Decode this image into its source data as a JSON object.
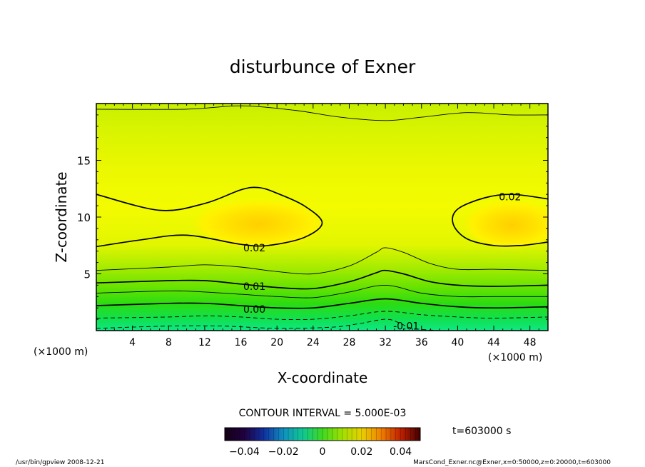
{
  "chart_data": {
    "type": "contour",
    "title": "disturbunce of Exner",
    "xlabel": "X-coordinate",
    "ylabel": "Z-coordinate",
    "x_unit": "(×1000 m)",
    "y_unit": "(×1000 m)",
    "xlim": [
      0,
      50
    ],
    "ylim": [
      0,
      20
    ],
    "x_ticks": [
      4,
      8,
      12,
      16,
      20,
      24,
      28,
      32,
      36,
      40,
      44,
      48
    ],
    "y_ticks": [
      5,
      10,
      15
    ],
    "contour_interval_text": "CONTOUR INTERVAL = 5.000E-03",
    "time_text": "t=603000 s",
    "colorbar_ticks": [
      "−0.04",
      "−0.02",
      "0",
      "0.02",
      "0.04"
    ],
    "colorbar_range": [
      -0.05,
      0.05
    ],
    "contour_labels": [
      {
        "text": "0.02",
        "x": 17.5,
        "y": 7.3
      },
      {
        "text": "0.02",
        "x": 45.8,
        "y": 11.8
      },
      {
        "text": "0.01",
        "x": 17.5,
        "y": 3.9
      },
      {
        "text": "0.00",
        "x": 17.5,
        "y": 1.9
      },
      {
        "text": "-0.01",
        "x": 34.3,
        "y": 0.4
      }
    ],
    "contour_lines": [
      {
        "level": 0.025,
        "style": "thick",
        "points": [
          [
            0,
            12.0
          ],
          [
            7,
            10.6
          ],
          [
            12,
            11.2
          ],
          [
            16,
            12.4
          ],
          [
            18,
            12.6
          ],
          [
            20,
            12.1
          ],
          [
            23,
            11.0
          ],
          [
            25,
            9.5
          ],
          [
            23,
            8.2
          ],
          [
            19,
            7.5
          ],
          [
            16,
            7.6
          ],
          [
            10,
            8.4
          ],
          [
            5,
            8.0
          ],
          [
            0,
            7.4
          ]
        ]
      },
      {
        "level": 0.025,
        "style": "thick",
        "points": [
          [
            50,
            11.6
          ],
          [
            46,
            12.0
          ],
          [
            43,
            11.7
          ],
          [
            40,
            10.7
          ],
          [
            39.5,
            9.4
          ],
          [
            41,
            8.1
          ],
          [
            44,
            7.5
          ],
          [
            47,
            7.5
          ],
          [
            50,
            7.8
          ]
        ]
      },
      {
        "level": 0.015,
        "style": "thin",
        "points": [
          [
            0,
            5.3
          ],
          [
            8,
            5.6
          ],
          [
            12,
            5.8
          ],
          [
            16,
            5.6
          ],
          [
            20,
            5.2
          ],
          [
            24,
            5.0
          ],
          [
            28,
            5.7
          ],
          [
            31,
            6.9
          ],
          [
            32,
            7.3
          ],
          [
            34,
            6.9
          ],
          [
            37,
            5.9
          ],
          [
            40,
            5.4
          ],
          [
            44,
            5.4
          ],
          [
            50,
            5.3
          ]
        ]
      },
      {
        "level": 0.01,
        "style": "thick",
        "points": [
          [
            0,
            4.2
          ],
          [
            8,
            4.4
          ],
          [
            12,
            4.4
          ],
          [
            16,
            4.1
          ],
          [
            20,
            3.8
          ],
          [
            24,
            3.7
          ],
          [
            28,
            4.3
          ],
          [
            31,
            5.1
          ],
          [
            32,
            5.3
          ],
          [
            34,
            5.0
          ],
          [
            37,
            4.3
          ],
          [
            40,
            4.0
          ],
          [
            44,
            3.9
          ],
          [
            50,
            4.0
          ]
        ]
      },
      {
        "level": 0.005,
        "style": "thin",
        "points": [
          [
            0,
            3.3
          ],
          [
            8,
            3.5
          ],
          [
            12,
            3.4
          ],
          [
            16,
            3.2
          ],
          [
            20,
            3.0
          ],
          [
            24,
            2.9
          ],
          [
            28,
            3.4
          ],
          [
            32,
            4.0
          ],
          [
            36,
            3.3
          ],
          [
            40,
            3.0
          ],
          [
            44,
            3.0
          ],
          [
            50,
            3.0
          ]
        ]
      },
      {
        "level": 0.0,
        "style": "thick",
        "points": [
          [
            0,
            2.2
          ],
          [
            8,
            2.4
          ],
          [
            12,
            2.4
          ],
          [
            16,
            2.2
          ],
          [
            20,
            2.0
          ],
          [
            24,
            2.0
          ],
          [
            28,
            2.4
          ],
          [
            32,
            2.8
          ],
          [
            36,
            2.4
          ],
          [
            40,
            2.1
          ],
          [
            44,
            2.0
          ],
          [
            50,
            2.1
          ]
        ]
      },
      {
        "level": -0.005,
        "style": "dashed",
        "points": [
          [
            0,
            1.1
          ],
          [
            8,
            1.2
          ],
          [
            12,
            1.3
          ],
          [
            16,
            1.2
          ],
          [
            20,
            1.0
          ],
          [
            24,
            1.0
          ],
          [
            28,
            1.3
          ],
          [
            32,
            1.7
          ],
          [
            36,
            1.4
          ],
          [
            40,
            1.2
          ],
          [
            44,
            1.1
          ],
          [
            50,
            1.2
          ]
        ]
      },
      {
        "level": -0.01,
        "style": "dashed",
        "points": [
          [
            0,
            0.2
          ],
          [
            8,
            0.4
          ],
          [
            14,
            0.4
          ],
          [
            20,
            0.2
          ],
          [
            26,
            0.3
          ],
          [
            29,
            0.6
          ],
          [
            32,
            1.0
          ],
          [
            33.5,
            0.7
          ],
          [
            35,
            0.2
          ],
          [
            38,
            0.0
          ]
        ]
      },
      {
        "level": 0.025,
        "style": "thin",
        "points": [
          [
            0,
            19.5
          ],
          [
            10,
            19.5
          ],
          [
            16,
            19.8
          ],
          [
            22,
            19.4
          ],
          [
            27,
            18.8
          ],
          [
            32,
            18.5
          ],
          [
            36,
            18.8
          ],
          [
            41,
            19.2
          ],
          [
            46,
            19.0
          ],
          [
            50,
            19.0
          ]
        ]
      }
    ],
    "fill_peaks": [
      {
        "x": 18,
        "y": 9.4,
        "value": 0.03
      },
      {
        "x": 46,
        "y": 9.3,
        "value": 0.03
      }
    ],
    "bottom_value": -0.015
  },
  "footer": {
    "left": "/usr/bin/gpview   2008-12-21",
    "right": "MarsCond_Exner.nc@Exner,x=0:50000,z=0:20000,t=603000"
  }
}
